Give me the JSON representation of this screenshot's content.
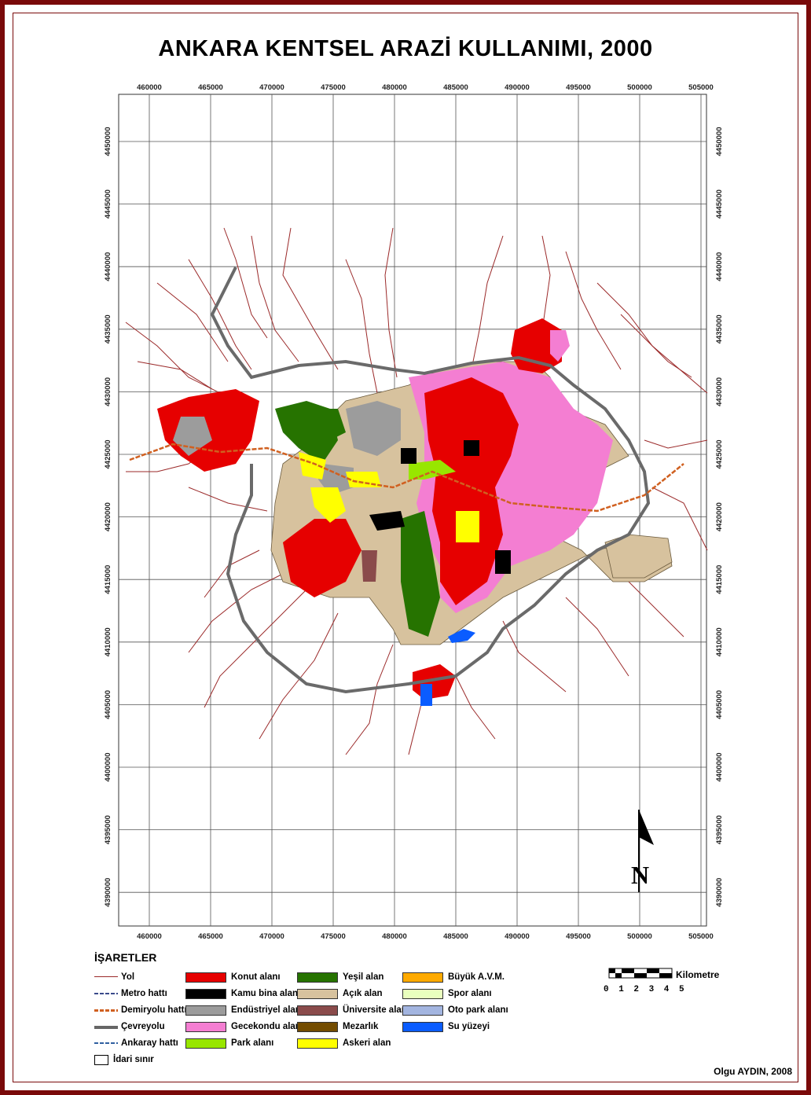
{
  "title": "ANKARA KENTSEL ARAZİ KULLANIMI, 2000",
  "x_ticks": [
    "460000",
    "465000",
    "470000",
    "475000",
    "480000",
    "485000",
    "490000",
    "495000",
    "500000",
    "505000"
  ],
  "y_ticks": [
    "4450000",
    "4445000",
    "4440000",
    "4435000",
    "4430000",
    "4425000",
    "4420000",
    "4415000",
    "4410000",
    "4405000",
    "4400000",
    "4395000",
    "4390000"
  ],
  "legend": {
    "heading": "İŞARETLER",
    "lines": [
      {
        "label": "Yol",
        "color": "#9b2a2a",
        "style": "thin"
      },
      {
        "label": "Metro hattı",
        "color": "#3a4a8a",
        "style": "dashed"
      },
      {
        "label": "Demiryolu hattı",
        "color": "#d06020",
        "style": "rail"
      },
      {
        "label": "Çevreyolu",
        "color": "#666666",
        "style": "thick"
      },
      {
        "label": "Ankaray hattı",
        "color": "#2f5fa0",
        "style": "dashed"
      },
      {
        "label": "İdari sınır",
        "color": "#000000",
        "style": "box"
      }
    ],
    "col1": [
      {
        "label": "Konut alanı",
        "color": "#e60000"
      },
      {
        "label": "Kamu bina alanı",
        "color": "#000000"
      },
      {
        "label": "Endüstriyel alan",
        "color": "#9c9c9c"
      },
      {
        "label": "Gecekondu alanı",
        "color": "#f47ed2"
      },
      {
        "label": "Park alanı",
        "color": "#98e600"
      }
    ],
    "col2": [
      {
        "label": "Yeşil alan",
        "color": "#267300"
      },
      {
        "label": "Açık alan",
        "color": "#d7c29e"
      },
      {
        "label": "Üniversite alanı",
        "color": "#8a4b4b"
      },
      {
        "label": "Mezarlık",
        "color": "#734c00"
      },
      {
        "label": "Askeri alan",
        "color": "#ffff00"
      }
    ],
    "col3": [
      {
        "label": "Büyük A.V.M.",
        "color": "#ffaa00"
      },
      {
        "label": "Spor alanı",
        "color": "#e9ffbe"
      },
      {
        "label": "Oto park alanı",
        "color": "#a3b5e0"
      },
      {
        "label": "Su yüzeyi",
        "color": "#0a5cff"
      }
    ]
  },
  "scale": {
    "unit": "Kilometre",
    "numbers": "0 1 2 3 4 5"
  },
  "north_label": "N",
  "author": "Olgu AYDIN, 2008",
  "colors": {
    "frame": "#7a0a0a",
    "road": "#9b2a2a",
    "ring": "#6a6a6a"
  }
}
